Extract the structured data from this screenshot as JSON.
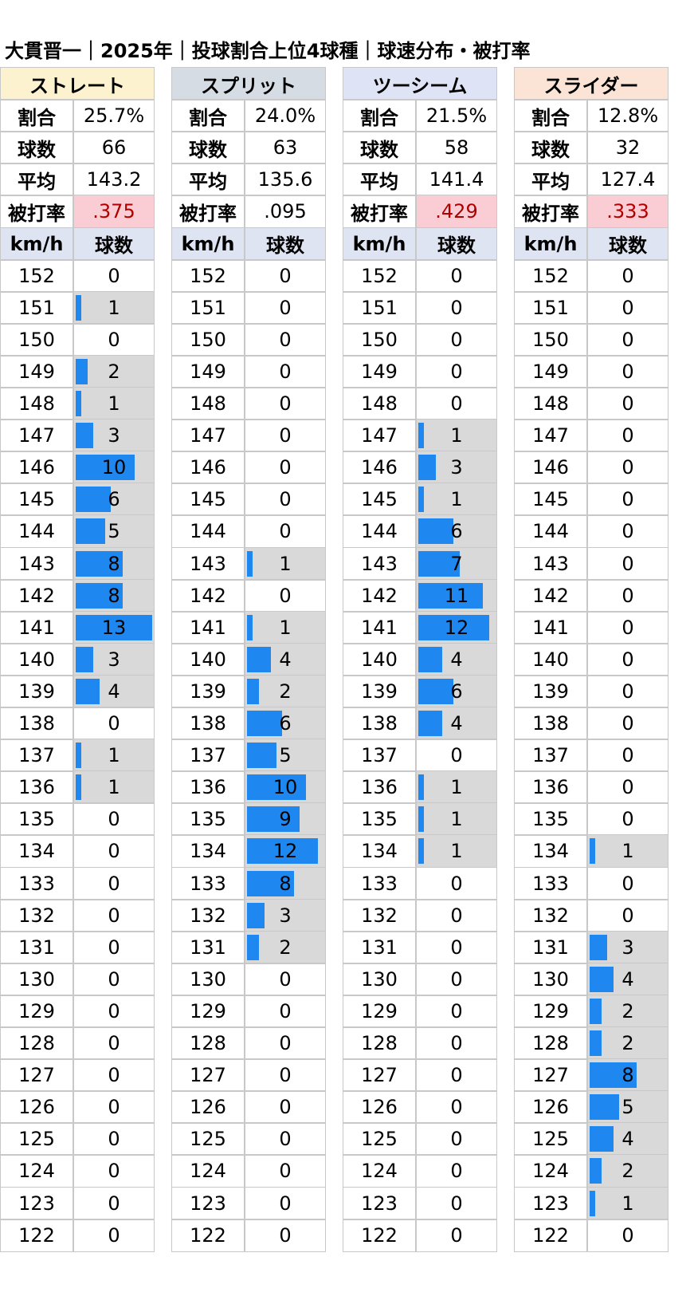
{
  "title": "大貫晋一｜2025年｜投球割合上位4球種｜球速分布・被打率",
  "labels": {
    "ratio": "割合",
    "count": "球数",
    "avg": "平均",
    "babip": "被打率",
    "kmh": "km/h",
    "pitches": "球数"
  },
  "colors": {
    "bar": "#1e88f0",
    "bar_bg": "#d9d9d9",
    "highlight_bg": "#f9cdd3",
    "highlight_text": "#b00000"
  },
  "chart_data": {
    "type": "bar",
    "orientation": "horizontal",
    "speeds": [
      152,
      151,
      150,
      149,
      148,
      147,
      146,
      145,
      144,
      143,
      142,
      141,
      140,
      139,
      138,
      137,
      136,
      135,
      134,
      133,
      132,
      131,
      130,
      129,
      128,
      127,
      126,
      125,
      124,
      123,
      122
    ],
    "series": [
      {
        "name": "ストレート",
        "header_color": "#fdf2d0",
        "ratio": "25.7%",
        "count": "66",
        "avg": "143.2",
        "babip": ".375",
        "babip_highlight": true,
        "values": [
          0,
          1,
          0,
          2,
          1,
          3,
          10,
          6,
          5,
          8,
          8,
          13,
          3,
          4,
          0,
          1,
          1,
          0,
          0,
          0,
          0,
          0,
          0,
          0,
          0,
          0,
          0,
          0,
          0,
          0,
          0
        ]
      },
      {
        "name": "スプリット",
        "header_color": "#d6dce4",
        "ratio": "24.0%",
        "count": "63",
        "avg": "135.6",
        "babip": ".095",
        "babip_highlight": false,
        "values": [
          0,
          0,
          0,
          0,
          0,
          0,
          0,
          0,
          0,
          1,
          0,
          1,
          4,
          2,
          6,
          5,
          10,
          9,
          12,
          8,
          3,
          2,
          0,
          0,
          0,
          0,
          0,
          0,
          0,
          0,
          0
        ]
      },
      {
        "name": "ツーシーム",
        "header_color": "#dee3f5",
        "ratio": "21.5%",
        "count": "58",
        "avg": "141.4",
        "babip": ".429",
        "babip_highlight": true,
        "values": [
          0,
          0,
          0,
          0,
          0,
          1,
          3,
          1,
          6,
          7,
          11,
          12,
          4,
          6,
          4,
          0,
          1,
          1,
          1,
          0,
          0,
          0,
          0,
          0,
          0,
          0,
          0,
          0,
          0,
          0,
          0
        ]
      },
      {
        "name": "スライダー",
        "header_color": "#fbe4d6",
        "ratio": "12.8%",
        "count": "32",
        "avg": "127.4",
        "babip": ".333",
        "babip_highlight": true,
        "values": [
          0,
          0,
          0,
          0,
          0,
          0,
          0,
          0,
          0,
          0,
          0,
          0,
          0,
          0,
          0,
          0,
          0,
          0,
          1,
          0,
          0,
          3,
          4,
          2,
          2,
          8,
          5,
          4,
          2,
          1,
          0
        ]
      }
    ]
  }
}
